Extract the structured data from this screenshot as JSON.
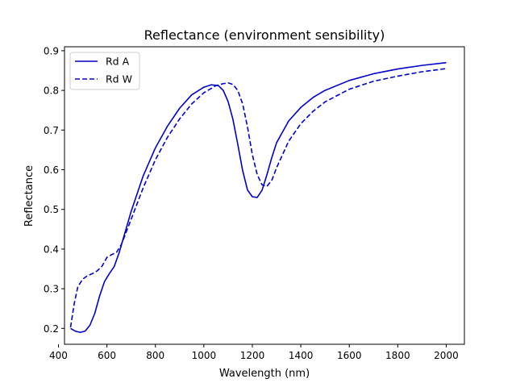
{
  "chart_data": {
    "type": "line",
    "title": "Reflectance (environment sensibility)",
    "xlabel": "Wavelength (nm)",
    "ylabel": "Reflectance",
    "xlim": [
      425,
      2075
    ],
    "ylim": [
      0.16,
      0.91
    ],
    "x_ticks": [
      400,
      600,
      800,
      1000,
      1200,
      1400,
      1600,
      1800,
      2000
    ],
    "y_ticks": [
      0.2,
      0.3,
      0.4,
      0.5,
      0.6,
      0.7,
      0.8,
      0.9
    ],
    "grid": false,
    "legend_position": "top-left",
    "color": "#0000cc",
    "series": [
      {
        "name": "Rd A",
        "style": "solid",
        "x": [
          450,
          470,
          490,
          510,
          530,
          550,
          570,
          590,
          610,
          630,
          650,
          700,
          750,
          800,
          850,
          900,
          950,
          1000,
          1030,
          1060,
          1080,
          1100,
          1120,
          1140,
          1160,
          1180,
          1200,
          1220,
          1240,
          1260,
          1280,
          1300,
          1350,
          1400,
          1450,
          1500,
          1600,
          1700,
          1800,
          1900,
          2000
        ],
        "y": [
          0.2,
          0.193,
          0.19,
          0.193,
          0.208,
          0.238,
          0.282,
          0.318,
          0.338,
          0.356,
          0.39,
          0.495,
          0.585,
          0.655,
          0.71,
          0.755,
          0.789,
          0.808,
          0.814,
          0.812,
          0.8,
          0.772,
          0.727,
          0.664,
          0.598,
          0.549,
          0.532,
          0.53,
          0.548,
          0.587,
          0.63,
          0.668,
          0.723,
          0.757,
          0.782,
          0.8,
          0.825,
          0.842,
          0.854,
          0.863,
          0.87
        ]
      },
      {
        "name": "Rd W",
        "style": "dashed",
        "x": [
          450,
          465,
          480,
          500,
          520,
          540,
          560,
          580,
          600,
          620,
          640,
          660,
          700,
          750,
          800,
          850,
          900,
          950,
          1000,
          1050,
          1080,
          1100,
          1120,
          1140,
          1160,
          1180,
          1200,
          1220,
          1240,
          1260,
          1280,
          1300,
          1350,
          1400,
          1450,
          1500,
          1600,
          1700,
          1800,
          1900,
          2000
        ],
        "y": [
          0.203,
          0.262,
          0.305,
          0.324,
          0.333,
          0.338,
          0.345,
          0.357,
          0.379,
          0.386,
          0.392,
          0.412,
          0.475,
          0.555,
          0.625,
          0.682,
          0.728,
          0.766,
          0.794,
          0.812,
          0.817,
          0.819,
          0.815,
          0.8,
          0.766,
          0.708,
          0.638,
          0.588,
          0.562,
          0.558,
          0.573,
          0.605,
          0.672,
          0.716,
          0.747,
          0.771,
          0.803,
          0.823,
          0.836,
          0.847,
          0.855
        ]
      }
    ]
  }
}
